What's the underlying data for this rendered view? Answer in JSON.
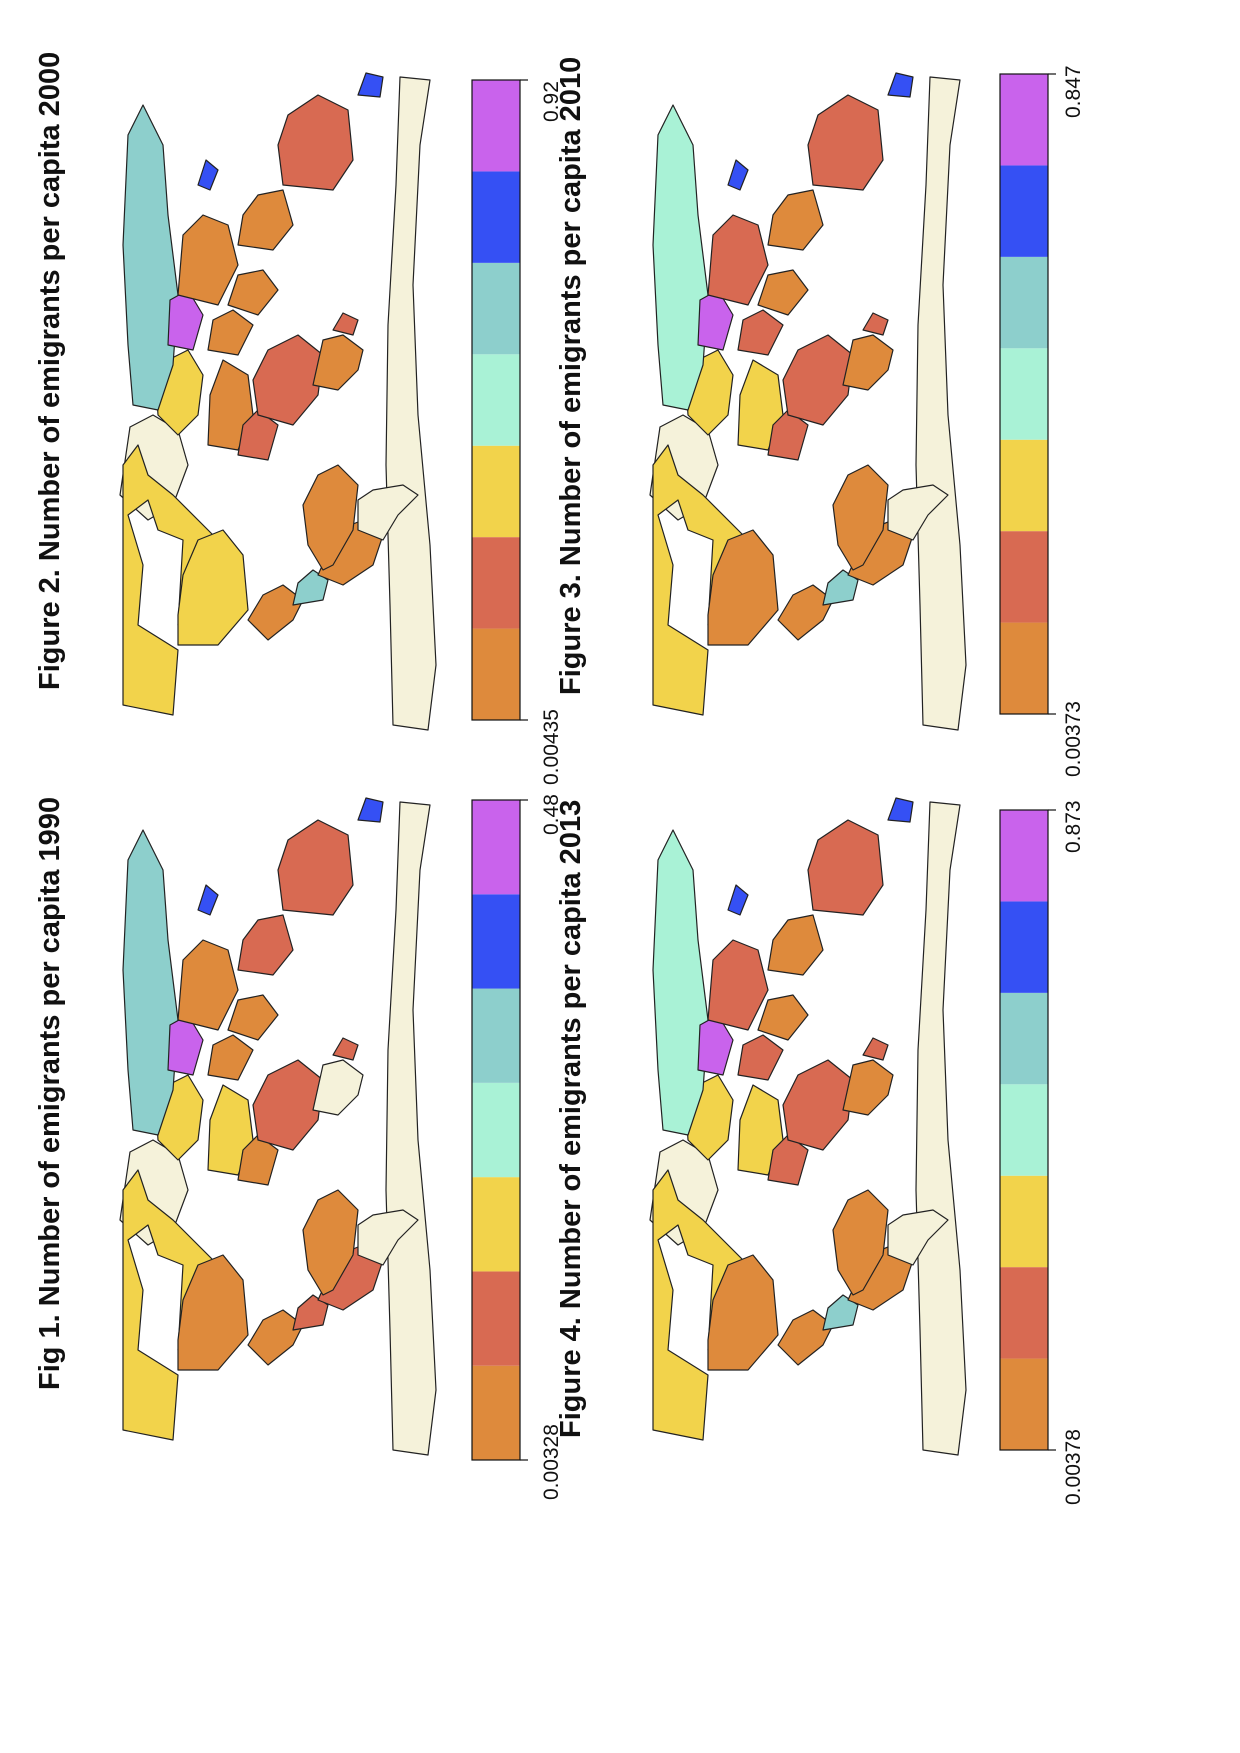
{
  "palette": {
    "orange": "#DE8A3C",
    "red": "#D86A52",
    "yellow": "#F2D34B",
    "mint": "#A9F2D6",
    "teal": "#8DCFCC",
    "blue": "#3550F4",
    "purple": "#C963EC",
    "pale": "#F5F2DA",
    "outline": "#222222"
  },
  "legend_colors": [
    "#DE8A3C",
    "#D86A52",
    "#F2D34B",
    "#A9F2D6",
    "#8DCFCC",
    "#3550F4",
    "#C963EC"
  ],
  "figures": [
    {
      "id": "fig1",
      "title": "Fig 1. Number of emigrants per capita 1990",
      "legend_min": "0.00328",
      "legend_max": "0.48",
      "regions": {
        "north_america": "yellow",
        "usa": "orange",
        "greenland": "pale",
        "mexico": "orange",
        "central_america": "red",
        "south_america": "red",
        "brazil": "orange",
        "argentina": "pale",
        "europe": "yellow",
        "russia": "teal",
        "north_africa": "yellow",
        "west_africa": "orange",
        "central_africa": "red",
        "southern_africa": "pale",
        "middle_east": "orange",
        "central_asia": "purple",
        "south_asia": "orange",
        "china": "orange",
        "southeast_asia": "red",
        "australia": "red",
        "new_zealand": "blue",
        "japan": "blue",
        "madagascar": "red",
        "antarctica": "pale"
      }
    },
    {
      "id": "fig2",
      "title": "Figure 2. Number of emigrants per capita 2000",
      "legend_min": "0.00435",
      "legend_max": "0.92",
      "regions": {
        "north_america": "yellow",
        "usa": "yellow",
        "greenland": "pale",
        "mexico": "orange",
        "central_america": "teal",
        "south_america": "orange",
        "brazil": "orange",
        "argentina": "pale",
        "europe": "yellow",
        "russia": "teal",
        "north_africa": "orange",
        "west_africa": "red",
        "central_africa": "red",
        "southern_africa": "orange",
        "middle_east": "orange",
        "central_asia": "purple",
        "south_asia": "orange",
        "china": "orange",
        "southeast_asia": "orange",
        "australia": "red",
        "new_zealand": "blue",
        "japan": "blue",
        "madagascar": "red",
        "antarctica": "pale"
      }
    },
    {
      "id": "fig3",
      "title": "Figure 3. Number of emigrants per capita 2010",
      "legend_min": "0.00373",
      "legend_max": "0.847",
      "regions": {
        "north_america": "yellow",
        "usa": "orange",
        "greenland": "pale",
        "mexico": "orange",
        "central_america": "teal",
        "south_america": "orange",
        "brazil": "orange",
        "argentina": "pale",
        "europe": "yellow",
        "russia": "mint",
        "north_africa": "yellow",
        "west_africa": "red",
        "central_africa": "red",
        "southern_africa": "orange",
        "middle_east": "red",
        "central_asia": "purple",
        "south_asia": "orange",
        "china": "red",
        "southeast_asia": "orange",
        "australia": "red",
        "new_zealand": "blue",
        "japan": "blue",
        "madagascar": "red",
        "antarctica": "pale"
      }
    },
    {
      "id": "fig4",
      "title": "Figure 4. Number of emigrants per capita 2013",
      "legend_min": "0.00378",
      "legend_max": "0.873",
      "regions": {
        "north_america": "yellow",
        "usa": "orange",
        "greenland": "pale",
        "mexico": "orange",
        "central_america": "teal",
        "south_america": "orange",
        "brazil": "orange",
        "argentina": "pale",
        "europe": "yellow",
        "russia": "mint",
        "north_africa": "yellow",
        "west_africa": "red",
        "central_africa": "red",
        "southern_africa": "orange",
        "middle_east": "red",
        "central_asia": "purple",
        "south_asia": "orange",
        "china": "red",
        "southeast_asia": "orange",
        "australia": "red",
        "new_zealand": "blue",
        "japan": "blue",
        "madagascar": "red",
        "antarctica": "pale"
      }
    }
  ]
}
